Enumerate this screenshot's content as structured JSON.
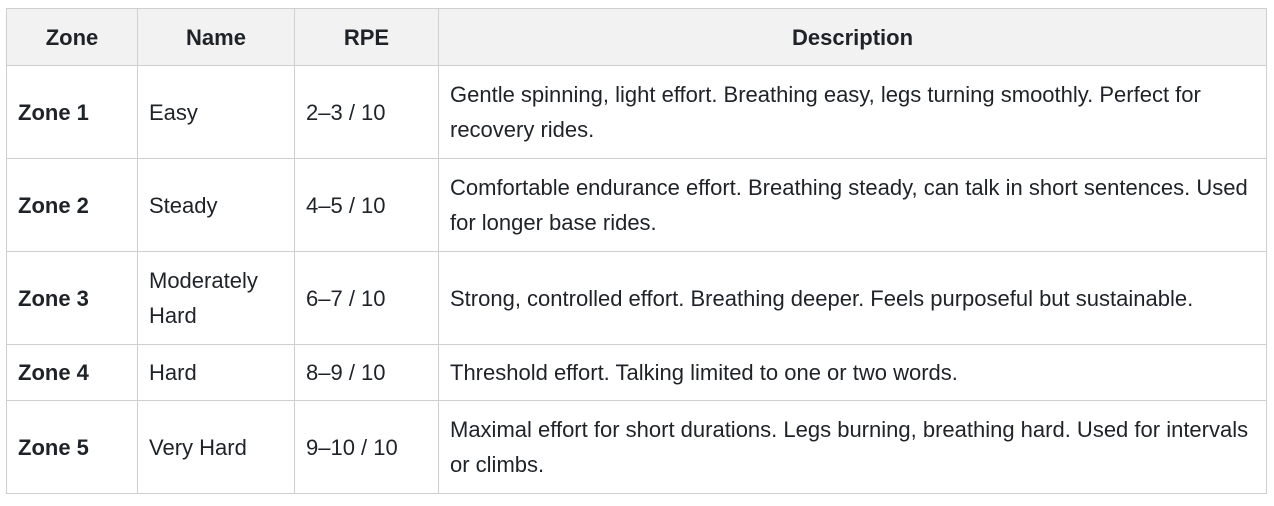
{
  "table": {
    "headers": [
      "Zone",
      "Name",
      "RPE",
      "Description"
    ],
    "rows": [
      {
        "zone": "Zone 1",
        "name": "Easy",
        "rpe": "2–3 / 10",
        "description": "Gentle spinning, light effort. Breathing easy, legs turning smoothly. Perfect for recovery rides."
      },
      {
        "zone": "Zone 2",
        "name": "Steady",
        "rpe": "4–5 / 10",
        "description": "Comfortable endurance effort. Breathing steady, can talk in short sentences. Used for longer base rides."
      },
      {
        "zone": "Zone 3",
        "name": "Moderately Hard",
        "rpe": "6–7 / 10",
        "description": "Strong, controlled effort. Breathing deeper. Feels purposeful but sustainable."
      },
      {
        "zone": "Zone 4",
        "name": "Hard",
        "rpe": "8–9 / 10",
        "description": "Threshold effort. Talking limited to one or two words."
      },
      {
        "zone": "Zone 5",
        "name": "Very Hard",
        "rpe": "9–10 / 10",
        "description": "Maximal effort for short durations. Legs burning, breathing hard. Used for intervals or climbs."
      }
    ]
  }
}
